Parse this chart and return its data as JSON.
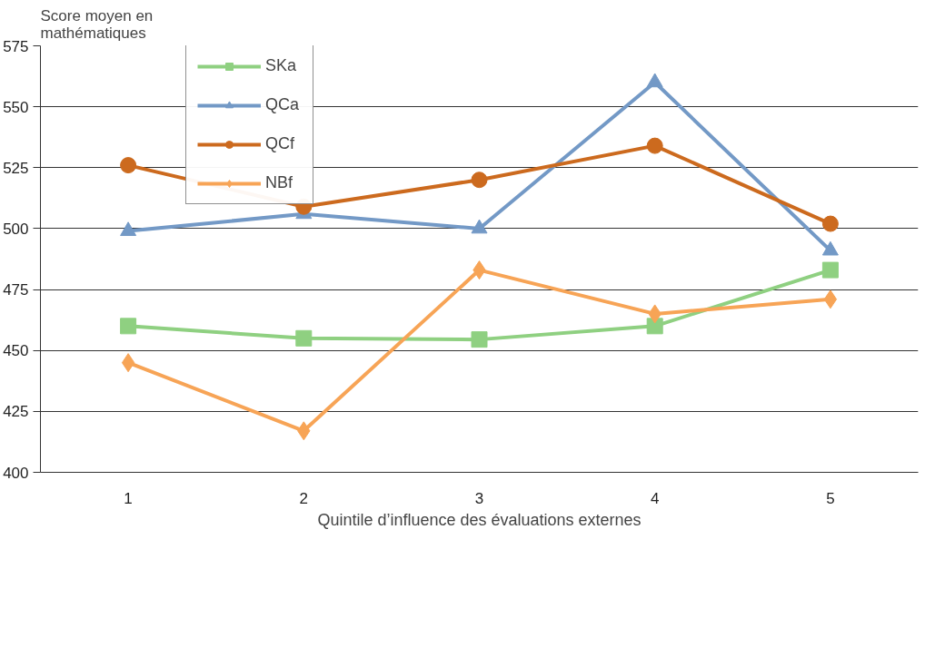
{
  "chart_data": {
    "type": "line",
    "ylabel": "Score moyen en\nmathématiques",
    "xlabel": "Quintile d’influence des évaluations externes",
    "categories": [
      "1",
      "2",
      "3",
      "4",
      "5"
    ],
    "series": [
      {
        "name": "SKa",
        "color": "#8fd081",
        "marker": "square",
        "values": [
          460,
          455,
          454.5,
          460,
          483
        ]
      },
      {
        "name": "QCa",
        "color": "#7399c6",
        "marker": "triangle",
        "values": [
          499,
          506,
          500,
          560,
          491
        ]
      },
      {
        "name": "QCf",
        "color": "#cc6a1e",
        "marker": "circle",
        "values": [
          526,
          509,
          520,
          534,
          502
        ]
      },
      {
        "name": "NBf",
        "color": "#f7a456",
        "marker": "diamond",
        "values": [
          445,
          417,
          483,
          465,
          471
        ]
      }
    ],
    "ylim": [
      400,
      575
    ],
    "yticks": [
      400,
      425,
      450,
      475,
      500,
      525,
      550,
      575
    ],
    "grid": "y",
    "legend": "top left",
    "line_style": "solid"
  }
}
